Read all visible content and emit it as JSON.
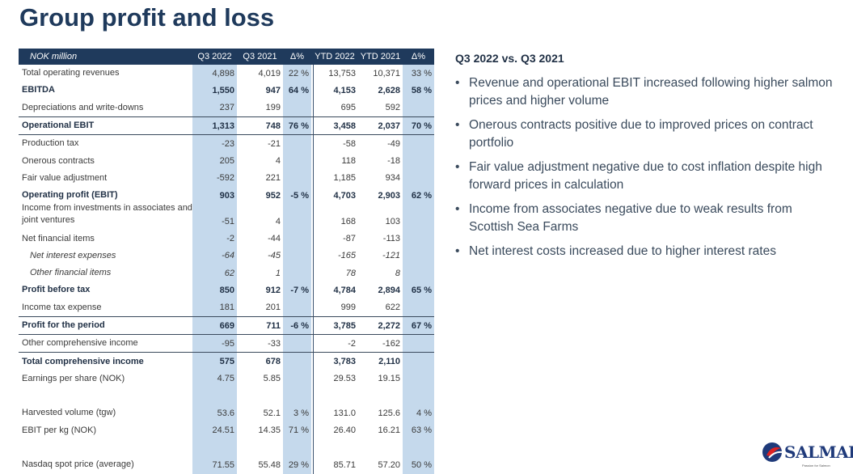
{
  "title": "Group profit and loss",
  "table": {
    "headers": [
      "NOK million",
      "Q3 2022",
      "Q3 2021",
      "Δ%",
      "YTD 2022",
      "YTD 2021",
      "Δ%"
    ],
    "rows": [
      {
        "label": "Total operating revenues",
        "v": [
          "4,898",
          "4,019",
          "22 %",
          "13,753",
          "10,371",
          "33 %"
        ]
      },
      {
        "label": "EBITDA",
        "v": [
          "1,550",
          "947",
          "64 %",
          "4,153",
          "2,628",
          "58 %"
        ]
      },
      {
        "label": "Depreciations and write-downs",
        "v": [
          "237",
          "199",
          "",
          "695",
          "592",
          ""
        ]
      },
      {
        "label": "Operational EBIT",
        "v": [
          "1,313",
          "748",
          "76 %",
          "3,458",
          "2,037",
          "70 %"
        ]
      },
      {
        "label": "Production tax",
        "v": [
          "-23",
          "-21",
          "",
          "-58",
          "-49",
          ""
        ]
      },
      {
        "label": "Onerous contracts",
        "v": [
          "205",
          "4",
          "",
          "118",
          "-18",
          ""
        ]
      },
      {
        "label": "Fair value adjustment",
        "v": [
          "-592",
          "221",
          "",
          "1,185",
          "934",
          ""
        ]
      },
      {
        "label": "Operating profit (EBIT)",
        "v": [
          "903",
          "952",
          "-5 %",
          "4,703",
          "2,903",
          "62 %"
        ]
      },
      {
        "label": "Income from investments in associates and joint ventures",
        "v": [
          "-51",
          "4",
          "",
          "168",
          "103",
          ""
        ]
      },
      {
        "label": "Net financial items",
        "v": [
          "-2",
          "-44",
          "",
          "-87",
          "-113",
          ""
        ]
      },
      {
        "label": "Net interest expenses",
        "v": [
          "-64",
          "-45",
          "",
          "-165",
          "-121",
          ""
        ]
      },
      {
        "label": "Other financial items",
        "v": [
          "62",
          "1",
          "",
          "78",
          "8",
          ""
        ]
      },
      {
        "label": "Profit before tax",
        "v": [
          "850",
          "912",
          "-7 %",
          "4,784",
          "2,894",
          "65 %"
        ]
      },
      {
        "label": "Income tax expense",
        "v": [
          "181",
          "201",
          "",
          "999",
          "622",
          ""
        ]
      },
      {
        "label": "Profit for the period",
        "v": [
          "669",
          "711",
          "-6 %",
          "3,785",
          "2,272",
          "67 %"
        ]
      },
      {
        "label": "Other comprehensive income",
        "v": [
          "-95",
          "-33",
          "",
          "-2",
          "-162",
          ""
        ]
      },
      {
        "label": "Total comprehensive income",
        "v": [
          "575",
          "678",
          "",
          "3,783",
          "2,110",
          ""
        ]
      },
      {
        "label": "Earnings per share (NOK)",
        "v": [
          "4.75",
          "5.85",
          "",
          "29.53",
          "19.15",
          ""
        ]
      },
      {
        "label": "Harvested volume (tgw)",
        "v": [
          "53.6",
          "52.1",
          "3 %",
          "131.0",
          "125.6",
          "4 %"
        ]
      },
      {
        "label": "EBIT per kg (NOK)",
        "v": [
          "24.51",
          "14.35",
          "71 %",
          "26.40",
          "16.21",
          "63 %"
        ]
      },
      {
        "label": "Nasdaq spot price (average)",
        "v": [
          "71.55",
          "55.48",
          "29 %",
          "85.71",
          "57.20",
          "50 %"
        ]
      }
    ]
  },
  "commentary": {
    "heading": "Q3 2022 vs. Q3 2021",
    "bullet": "•",
    "bullets": [
      "Revenue and operational EBIT increased following higher salmon prices and higher volume",
      "Onerous contracts positive due to improved prices on contract portfolio",
      "Fair value adjustment negative due to cost inflation despite high forward prices in calculation",
      "Income from associates negative due to weak results from Scottish Sea Farms",
      "Net interest costs increased due to higher interest rates"
    ]
  },
  "logo": {
    "name": "SALMAR",
    "tagline": "Passion for Salmon"
  }
}
